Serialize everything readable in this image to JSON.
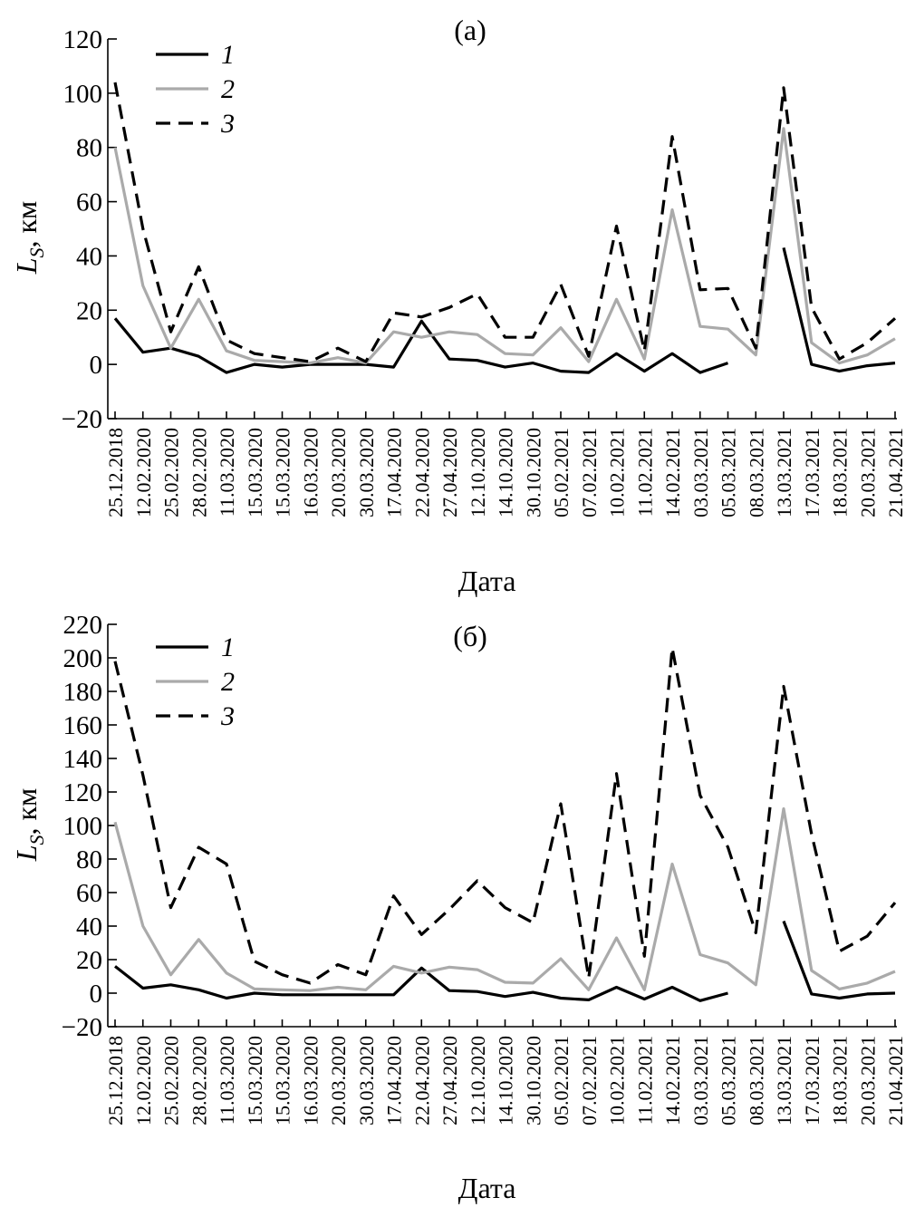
{
  "chart_data": [
    {
      "type": "line",
      "title": "(а)",
      "xlabel": "Дата",
      "ylabel_main": "L",
      "ylabel_sub": "S",
      "ylabel_unit": ", км",
      "ylim": [
        -20,
        120
      ],
      "yticks": [
        -20,
        0,
        20,
        40,
        60,
        80,
        100,
        120
      ],
      "ytick_labels": [
        "−20",
        "0",
        "20",
        "40",
        "60",
        "80",
        "100",
        "120"
      ],
      "categories": [
        "25.12.2018",
        "12.02.2020",
        "25.02.2020",
        "28.02.2020",
        "11.03.2020",
        "15.03.2020",
        "15.03.2020",
        "16.03.2020",
        "20.03.2020",
        "30.03.2020",
        "17.04.2020",
        "22.04.2020",
        "27.04.2020",
        "12.10.2020",
        "14.10.2020",
        "30.10.2020",
        "05.02.2021",
        "07.02.2021",
        "10.02.2021",
        "11.02.2021",
        "14.02.2021",
        "03.03.2021",
        "05.03.2021",
        "08.03.2021",
        "13.03.2021",
        "17.03.2021",
        "18.03.2021",
        "20.03.2021",
        "21.04.2021"
      ],
      "legend_position": "top-left",
      "series": [
        {
          "name": "1",
          "color": "#000000",
          "dash": "solid",
          "values": [
            17,
            4.5,
            6,
            3,
            -3,
            0,
            -1,
            0,
            0,
            0,
            -1,
            16,
            2,
            1.5,
            -1,
            0.5,
            -2.5,
            -3,
            4,
            -2.5,
            4,
            -3,
            0.5,
            null,
            43,
            0,
            -2.5,
            -0.5,
            0.5
          ]
        },
        {
          "name": "2",
          "color": "#aaaaaa",
          "dash": "solid",
          "values": [
            80,
            29,
            6,
            24,
            5,
            1.5,
            1,
            0.5,
            2.5,
            0.5,
            12,
            10,
            12,
            11,
            4,
            3.5,
            13.5,
            1,
            24,
            2,
            57,
            14,
            13,
            3.5,
            87,
            8,
            0.5,
            3.5,
            9.5
          ]
        },
        {
          "name": "3",
          "color": "#000000",
          "dash": "dashed",
          "values": [
            104,
            50,
            12,
            36,
            9,
            4,
            2.5,
            1,
            6,
            1,
            19,
            17.5,
            21,
            26,
            10,
            10,
            29.5,
            3,
            51,
            5,
            84,
            27.5,
            28,
            6,
            102,
            21,
            2,
            8,
            17
          ]
        }
      ]
    },
    {
      "type": "line",
      "title": "(б)",
      "xlabel": "Дата",
      "ylabel_main": "L",
      "ylabel_sub": "S",
      "ylabel_unit": ", км",
      "ylim": [
        -20,
        220
      ],
      "yticks": [
        -20,
        0,
        20,
        40,
        60,
        80,
        100,
        120,
        140,
        160,
        180,
        200,
        220
      ],
      "ytick_labels": [
        "−20",
        "0",
        "20",
        "40",
        "60",
        "80",
        "100",
        "120",
        "140",
        "160",
        "180",
        "200",
        "220"
      ],
      "categories": [
        "25.12.2018",
        "12.02.2020",
        "25.02.2020",
        "28.02.2020",
        "11.03.2020",
        "15.03.2020",
        "15.03.2020",
        "16.03.2020",
        "20.03.2020",
        "30.03.2020",
        "17.04.2020",
        "22.04.2020",
        "27.04.2020",
        "12.10.2020",
        "14.10.2020",
        "30.10.2020",
        "05.02.2021",
        "07.02.2021",
        "10.02.2021",
        "11.02.2021",
        "14.02.2021",
        "03.03.2021",
        "05.03.2021",
        "08.03.2021",
        "13.03.2021",
        "17.03.2021",
        "18.03.2021",
        "20.03.2021",
        "21.04.2021"
      ],
      "legend_position": "top-left",
      "series": [
        {
          "name": "1",
          "color": "#000000",
          "dash": "solid",
          "values": [
            16,
            3,
            5,
            2,
            -3,
            0,
            -1,
            -1,
            -1,
            -1,
            -1,
            15,
            1.5,
            1,
            -2,
            0.5,
            -3,
            -4,
            3.5,
            -3.5,
            3.5,
            -4.5,
            0,
            null,
            43,
            -0.5,
            -3,
            -0.5,
            0
          ]
        },
        {
          "name": "2",
          "color": "#aaaaaa",
          "dash": "solid",
          "values": [
            102,
            40,
            11,
            32,
            12,
            2.5,
            2,
            1.5,
            3.5,
            2,
            16,
            12,
            15.5,
            14,
            6.5,
            6,
            20.5,
            2,
            33,
            2,
            77,
            23,
            18,
            5,
            110,
            13.5,
            2.5,
            6,
            13
          ]
        },
        {
          "name": "3",
          "color": "#000000",
          "dash": "dashed",
          "values": [
            198,
            130,
            51,
            87,
            77,
            19,
            11,
            6,
            17,
            11,
            58,
            35,
            50,
            67,
            51,
            42,
            113,
            9,
            131,
            22,
            206,
            118,
            87,
            36,
            183,
            95,
            25,
            34,
            54
          ]
        }
      ]
    }
  ]
}
